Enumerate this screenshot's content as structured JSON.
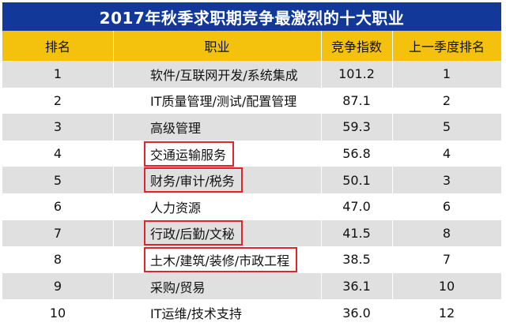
{
  "title": "2017年秋季求职期竞争最激烈的十大职业",
  "headers": {
    "rank": "排名",
    "job": "职业",
    "index": "竞争指数",
    "prev_rank": "上一季度排名"
  },
  "colors": {
    "title_bg": "#12399a",
    "header_bg": "#f4c20d",
    "stripe_bg": "#e0e0e0",
    "highlight_border": "#e0262a"
  },
  "rows": [
    {
      "rank": "1",
      "job": "软件/互联网开发/系统集成",
      "index": "101.2",
      "prev_rank": "1",
      "highlighted": false
    },
    {
      "rank": "2",
      "job": "IT质量管理/测试/配置管理",
      "index": "87.1",
      "prev_rank": "2",
      "highlighted": false
    },
    {
      "rank": "3",
      "job": "高级管理",
      "index": "59.3",
      "prev_rank": "5",
      "highlighted": false
    },
    {
      "rank": "4",
      "job": "交通运输服务",
      "index": "56.8",
      "prev_rank": "4",
      "highlighted": true
    },
    {
      "rank": "5",
      "job": "财务/审计/税务",
      "index": "50.1",
      "prev_rank": "3",
      "highlighted": true
    },
    {
      "rank": "6",
      "job": "人力资源",
      "index": "47.0",
      "prev_rank": "6",
      "highlighted": false
    },
    {
      "rank": "7",
      "job": "行政/后勤/文秘",
      "index": "41.5",
      "prev_rank": "8",
      "highlighted": true
    },
    {
      "rank": "8",
      "job": "土木/建筑/装修/市政工程",
      "index": "38.5",
      "prev_rank": "7",
      "highlighted": true
    },
    {
      "rank": "9",
      "job": "采购/贸易",
      "index": "36.1",
      "prev_rank": "10",
      "highlighted": false
    },
    {
      "rank": "10",
      "job": "IT运维/技术支持",
      "index": "36.0",
      "prev_rank": "12",
      "highlighted": false
    }
  ]
}
